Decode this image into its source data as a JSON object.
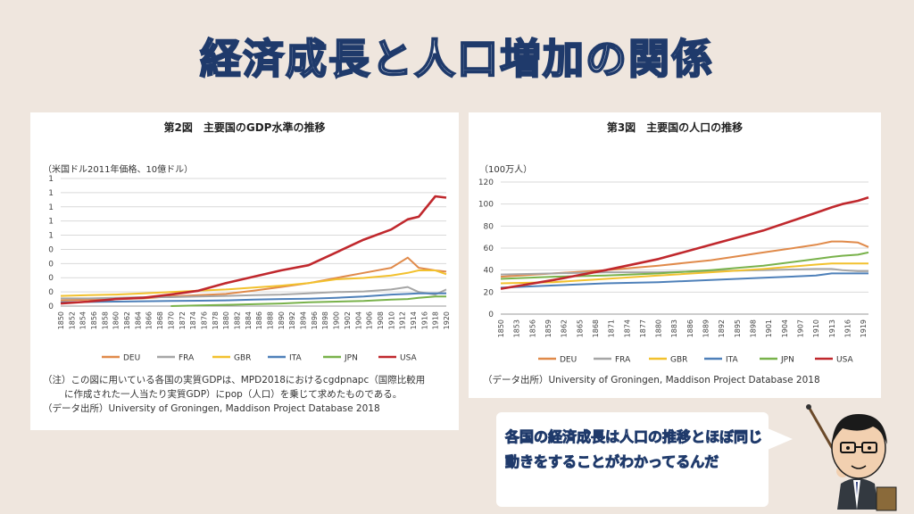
{
  "title": "経済成長と人口増加の関係",
  "left_chart": {
    "heading": "第2図　主要国のGDP水準の推移",
    "unit": "（米国ドル2011年価格、10億ドル）",
    "note_lines": [
      "（注）この図に用いている各国の実質GDPは、MPD2018におけるcgdpnapc（国際比較用",
      "に作成された一人当たり実質GDP）にpop（人口）を乗じて求めたものである。",
      "（データ出所）University of Groningen, Maddison Project Database 2018"
    ]
  },
  "right_chart": {
    "heading": "第3図　主要国の人口の推移",
    "unit": "（100万人）",
    "note": "（データ出所）University of Groningen, Maddison Project Database 2018"
  },
  "speech": "各国の経済成長は人口の推移とほぼ同じ動きをすることがわかってるんだ",
  "chart_data": [
    {
      "type": "line",
      "title": "第2図　主要国のGDP水準の推移",
      "ylabel": "（米国ドル2011年価格、10億ドル）",
      "y_tick_labels": [
        "0",
        "0",
        "0",
        "0",
        "0",
        "1",
        "1",
        "1",
        "1",
        "1"
      ],
      "x_tick_labels": [
        "1850",
        "1852",
        "1854",
        "1856",
        "1858",
        "1860",
        "1862",
        "1864",
        "1866",
        "1868",
        "1870",
        "1872",
        "1874",
        "1876",
        "1878",
        "1880",
        "1882",
        "1884",
        "1886",
        "1888",
        "1890",
        "1892",
        "1894",
        "1896",
        "1898",
        "1900",
        "1902",
        "1904",
        "1906",
        "1908",
        "1910",
        "1912",
        "1914",
        "1916",
        "1918",
        "1920"
      ],
      "ylim": [
        0,
        1.0
      ],
      "legend_position": "bottom",
      "x": [
        1850,
        1855,
        1860,
        1865,
        1870,
        1875,
        1880,
        1885,
        1890,
        1895,
        1900,
        1905,
        1910,
        1913,
        1915,
        1918,
        1920
      ],
      "series": [
        {
          "name": "DEU",
          "color": "#e08a4a",
          "values": [
            0.045,
            0.05,
            0.055,
            0.06,
            0.075,
            0.085,
            0.095,
            0.12,
            0.15,
            0.18,
            0.22,
            0.26,
            0.3,
            0.38,
            0.3,
            0.28,
            0.27
          ]
        },
        {
          "name": "FRA",
          "color": "#a6a6a6",
          "values": [
            0.06,
            0.06,
            0.065,
            0.07,
            0.07,
            0.075,
            0.08,
            0.085,
            0.09,
            0.1,
            0.11,
            0.115,
            0.13,
            0.15,
            0.11,
            0.09,
            0.13
          ]
        },
        {
          "name": "GBR",
          "color": "#f2c12e",
          "values": [
            0.08,
            0.085,
            0.09,
            0.1,
            0.11,
            0.12,
            0.13,
            0.145,
            0.16,
            0.18,
            0.21,
            0.22,
            0.24,
            0.26,
            0.28,
            0.28,
            0.25
          ]
        },
        {
          "name": "ITA",
          "color": "#4e80b9",
          "values": [
            0.03,
            0.032,
            0.035,
            0.038,
            0.04,
            0.042,
            0.045,
            0.05,
            0.055,
            0.058,
            0.065,
            0.075,
            0.09,
            0.095,
            0.1,
            0.1,
            0.1
          ]
        },
        {
          "name": "JPN",
          "color": "#79b24b",
          "values": [
            null,
            null,
            null,
            null,
            0.0,
            0.005,
            0.01,
            0.015,
            0.02,
            0.03,
            0.035,
            0.04,
            0.05,
            0.055,
            0.065,
            0.075,
            0.075
          ]
        },
        {
          "name": "USA",
          "color": "#c0282d",
          "values": [
            0.02,
            0.035,
            0.055,
            0.065,
            0.09,
            0.12,
            0.18,
            0.23,
            0.28,
            0.32,
            0.42,
            0.52,
            0.6,
            0.68,
            0.7,
            0.86,
            0.85
          ]
        }
      ]
    },
    {
      "type": "line",
      "title": "第3図　主要国の人口の推移",
      "ylabel": "（100万人）",
      "ylim": [
        0,
        120
      ],
      "y_ticks": [
        0,
        20,
        40,
        60,
        80,
        100,
        120
      ],
      "x_tick_labels": [
        "1850",
        "1853",
        "1856",
        "1859",
        "1862",
        "1865",
        "1868",
        "1871",
        "1874",
        "1877",
        "1880",
        "1883",
        "1886",
        "1889",
        "1892",
        "1895",
        "1898",
        "1901",
        "1904",
        "1907",
        "1910",
        "1913",
        "1916",
        "1919"
      ],
      "legend_position": "bottom",
      "x": [
        1850,
        1860,
        1870,
        1880,
        1890,
        1900,
        1910,
        1913,
        1915,
        1918,
        1920
      ],
      "series": [
        {
          "name": "DEU",
          "color": "#e08a4a",
          "values": [
            34,
            37,
            40,
            44,
            49,
            56,
            63,
            66,
            66,
            65,
            61
          ]
        },
        {
          "name": "FRA",
          "color": "#a6a6a6",
          "values": [
            36,
            37,
            38,
            38,
            39,
            40,
            41,
            41,
            40,
            39,
            39
          ]
        },
        {
          "name": "GBR",
          "color": "#f2c12e",
          "values": [
            28,
            29,
            32,
            35,
            38,
            41,
            45,
            46,
            46,
            46,
            46
          ]
        },
        {
          "name": "ITA",
          "color": "#4e80b9",
          "values": [
            24,
            26,
            28,
            29,
            31,
            33,
            35,
            37,
            37,
            37,
            37
          ]
        },
        {
          "name": "JPN",
          "color": "#79b24b",
          "values": [
            32,
            34,
            35,
            37,
            40,
            44,
            50,
            52,
            53,
            54,
            56
          ]
        },
        {
          "name": "USA",
          "color": "#c0282d",
          "values": [
            23,
            31,
            40,
            50,
            63,
            76,
            92,
            97,
            100,
            103,
            106
          ]
        }
      ]
    }
  ]
}
